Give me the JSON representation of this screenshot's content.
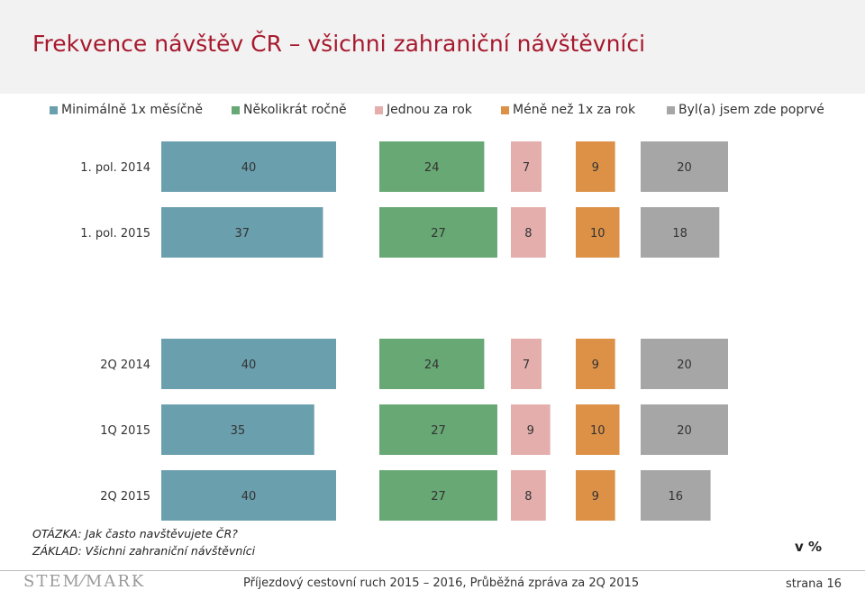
{
  "header": {
    "title": "Frekvence návštěv ČR – všichni zahraniční návštěvníci"
  },
  "chart_data": {
    "type": "bar",
    "orientation": "horizontal",
    "stacked": true,
    "unit": "v %",
    "categories": [
      "1. pol. 2014",
      "1. pol. 2015",
      "2Q 2014",
      "1Q 2015",
      "2Q 2015"
    ],
    "series": [
      {
        "name": "Minimálně 1x měsíčně",
        "color": "#6a9fae",
        "values": [
          40,
          37,
          40,
          35,
          40
        ]
      },
      {
        "name": "Několikrát ročně",
        "color": "#67a874",
        "values": [
          24,
          27,
          24,
          27,
          27
        ]
      },
      {
        "name": "Jednou za rok",
        "color": "#e3aeac",
        "values": [
          7,
          8,
          7,
          9,
          8
        ]
      },
      {
        "name": "Méně než 1x za rok",
        "color": "#dc9147",
        "values": [
          9,
          10,
          9,
          10,
          9
        ]
      },
      {
        "name": "Byl(a) jsem zde poprvé",
        "color": "#a6a6a6",
        "values": [
          20,
          18,
          20,
          20,
          16
        ]
      }
    ],
    "legend_position": "top",
    "grid": false
  },
  "notes": {
    "question": "OTÁZKA: Jak často navštěvujete ČR?",
    "base": "ZÁKLAD: Všichni zahraniční návštěvníci",
    "unit_label": "v %"
  },
  "footer": {
    "logo": "STEM⁄MARK",
    "text": "Příjezdový cestovní ruch 2015 – 2016, Průběžná zpráva za 2Q 2015",
    "page": "strana 16"
  }
}
